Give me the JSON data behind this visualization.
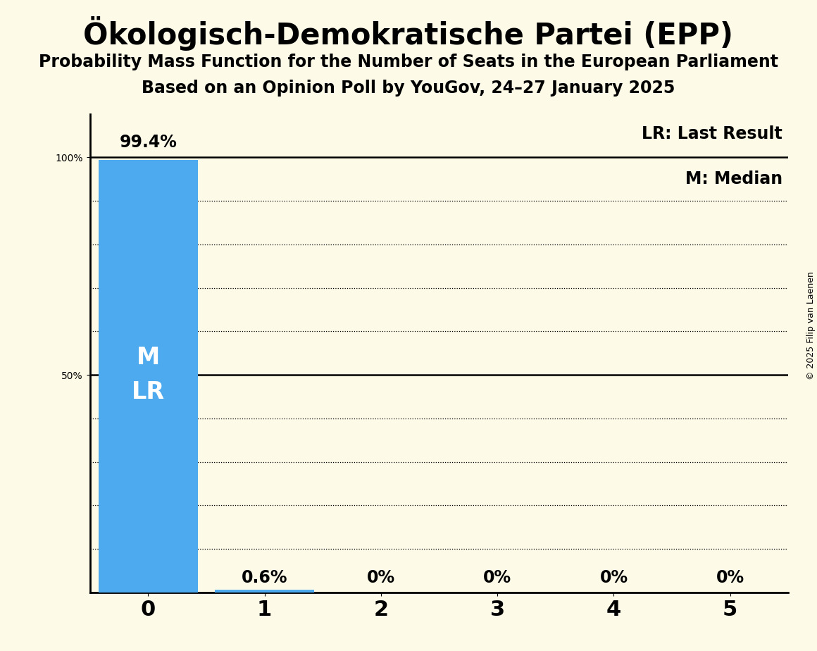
{
  "title": "Ökologisch-Demokratische Partei (EPP)",
  "subtitle1": "Probability Mass Function for the Number of Seats in the European Parliament",
  "subtitle2": "Based on an Opinion Poll by YouGov, 24–27 January 2025",
  "copyright": "© 2025 Filip van Laenen",
  "seats": [
    0,
    1,
    2,
    3,
    4,
    5
  ],
  "probabilities": [
    99.4,
    0.6,
    0.0,
    0.0,
    0.0,
    0.0
  ],
  "bar_color": "#4daaee",
  "bar_labels": [
    "99.4%",
    "0.6%",
    "0%",
    "0%",
    "0%",
    "0%"
  ],
  "median_seat": 0,
  "last_result_seat": 0,
  "background_color": "#fdfae8",
  "legend_lr": "LR: Last Result",
  "legend_m": "M: Median",
  "xlim": [
    -0.5,
    5.5
  ],
  "ylim": [
    0,
    110
  ]
}
